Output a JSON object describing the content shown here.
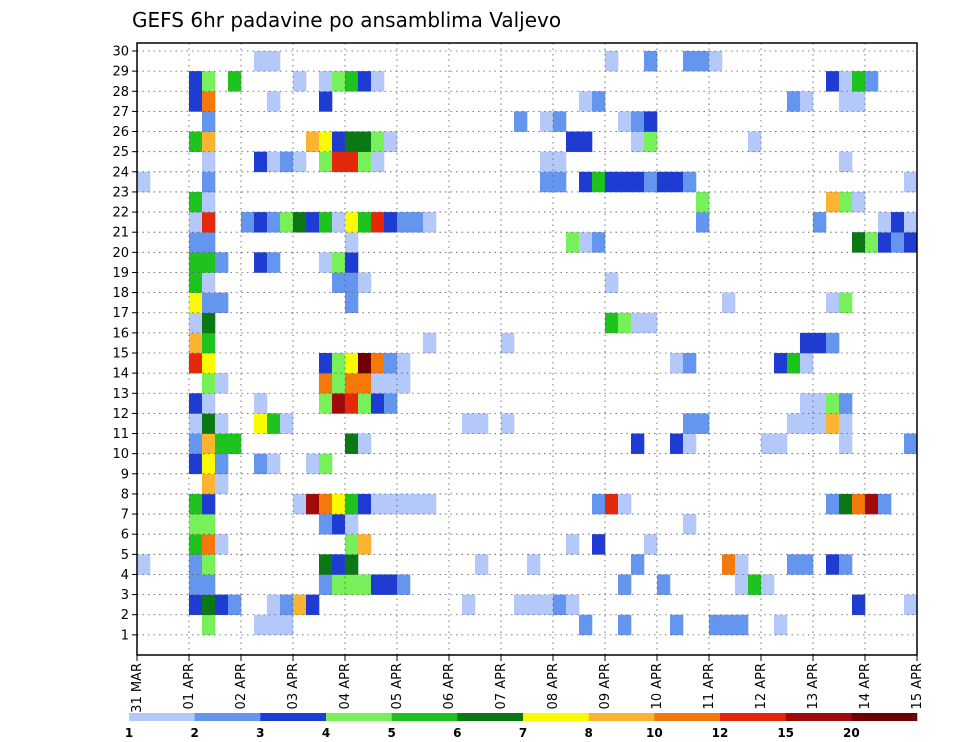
{
  "chart_data": {
    "type": "heatmap",
    "title": "GEFS 6hr padavine po ansamblima Valjevo",
    "x_tick_labels": [
      "31 MAR",
      "01 APR",
      "02 APR",
      "03 APR",
      "04 APR",
      "05 APR",
      "06 APR",
      "07 APR",
      "08 APR",
      "09 APR",
      "10 APR",
      "11 APR",
      "12 APR",
      "13 APR",
      "14 APR",
      "15 APR"
    ],
    "y_tick_labels": [
      "1",
      "2",
      "3",
      "4",
      "5",
      "6",
      "7",
      "8",
      "9",
      "10",
      "11",
      "12",
      "13",
      "14",
      "15",
      "16",
      "17",
      "18",
      "19",
      "20",
      "21",
      "22",
      "23",
      "24",
      "25",
      "26",
      "27",
      "28",
      "29",
      "30"
    ],
    "ylim": [
      0,
      30
    ],
    "x_steps": 60,
    "steps_per_day": 4,
    "grid": true,
    "colorbar": {
      "labels": [
        "1",
        "2",
        "3",
        "4",
        "5",
        "6",
        "7",
        "8",
        "10",
        "12",
        "15",
        "20"
      ],
      "colors": [
        "#b4c8fa",
        "#6496f0",
        "#1e3cd2",
        "#78f05a",
        "#1ec31e",
        "#0a7814",
        "#fafa00",
        "#fab432",
        "#f5780a",
        "#e6280a",
        "#a00a0a",
        "#6e0000"
      ]
    },
    "cells": [
      [
        1,
        5,
        3
      ],
      [
        1,
        9,
        0
      ],
      [
        1,
        10,
        0
      ],
      [
        1,
        11,
        0
      ],
      [
        1,
        34,
        1
      ],
      [
        1,
        37,
        1
      ],
      [
        1,
        41,
        1
      ],
      [
        1,
        44,
        1
      ],
      [
        1,
        45,
        1
      ],
      [
        1,
        46,
        1
      ],
      [
        1,
        49,
        0
      ],
      [
        2,
        4,
        2
      ],
      [
        2,
        5,
        5
      ],
      [
        2,
        6,
        2
      ],
      [
        2,
        7,
        1
      ],
      [
        2,
        10,
        0
      ],
      [
        2,
        11,
        1
      ],
      [
        2,
        12,
        7
      ],
      [
        2,
        13,
        2
      ],
      [
        2,
        25,
        0
      ],
      [
        2,
        29,
        0
      ],
      [
        2,
        30,
        0
      ],
      [
        2,
        31,
        0
      ],
      [
        2,
        32,
        1
      ],
      [
        2,
        33,
        0
      ],
      [
        2,
        55,
        2
      ],
      [
        2,
        59,
        0
      ],
      [
        3,
        4,
        1
      ],
      [
        3,
        5,
        1
      ],
      [
        3,
        14,
        1
      ],
      [
        3,
        15,
        3
      ],
      [
        3,
        16,
        3
      ],
      [
        3,
        17,
        3
      ],
      [
        3,
        18,
        2
      ],
      [
        3,
        19,
        2
      ],
      [
        3,
        20,
        1
      ],
      [
        3,
        37,
        1
      ],
      [
        3,
        40,
        1
      ],
      [
        3,
        46,
        0
      ],
      [
        3,
        47,
        4
      ],
      [
        3,
        48,
        0
      ],
      [
        4,
        0,
        0
      ],
      [
        4,
        4,
        1
      ],
      [
        4,
        5,
        3
      ],
      [
        4,
        14,
        5
      ],
      [
        4,
        15,
        2
      ],
      [
        4,
        16,
        5
      ],
      [
        4,
        26,
        0
      ],
      [
        4,
        30,
        0
      ],
      [
        4,
        38,
        1
      ],
      [
        4,
        45,
        8
      ],
      [
        4,
        46,
        0
      ],
      [
        4,
        50,
        1
      ],
      [
        4,
        51,
        1
      ],
      [
        4,
        53,
        2
      ],
      [
        4,
        54,
        1
      ],
      [
        5,
        4,
        4
      ],
      [
        5,
        5,
        8
      ],
      [
        5,
        6,
        0
      ],
      [
        5,
        16,
        3
      ],
      [
        5,
        17,
        7
      ],
      [
        5,
        33,
        0
      ],
      [
        5,
        35,
        2
      ],
      [
        5,
        39,
        0
      ],
      [
        6,
        4,
        3
      ],
      [
        6,
        5,
        3
      ],
      [
        6,
        14,
        1
      ],
      [
        6,
        15,
        2
      ],
      [
        6,
        16,
        0
      ],
      [
        6,
        42,
        0
      ],
      [
        7,
        4,
        4
      ],
      [
        7,
        5,
        2
      ],
      [
        7,
        12,
        0
      ],
      [
        7,
        13,
        10
      ],
      [
        7,
        14,
        8
      ],
      [
        7,
        15,
        6
      ],
      [
        7,
        16,
        4
      ],
      [
        7,
        17,
        2
      ],
      [
        7,
        18,
        0
      ],
      [
        7,
        19,
        0
      ],
      [
        7,
        20,
        0
      ],
      [
        7,
        21,
        0
      ],
      [
        7,
        22,
        0
      ],
      [
        7,
        35,
        1
      ],
      [
        7,
        36,
        9
      ],
      [
        7,
        37,
        0
      ],
      [
        7,
        53,
        1
      ],
      [
        7,
        54,
        5
      ],
      [
        7,
        55,
        8
      ],
      [
        7,
        56,
        10
      ],
      [
        7,
        57,
        1
      ],
      [
        8,
        5,
        7
      ],
      [
        8,
        6,
        0
      ],
      [
        9,
        4,
        2
      ],
      [
        9,
        5,
        6
      ],
      [
        9,
        6,
        1
      ],
      [
        9,
        9,
        1
      ],
      [
        9,
        10,
        0
      ],
      [
        9,
        13,
        0
      ],
      [
        9,
        14,
        3
      ],
      [
        10,
        4,
        1
      ],
      [
        10,
        5,
        7
      ],
      [
        10,
        6,
        4
      ],
      [
        10,
        7,
        4
      ],
      [
        10,
        16,
        5
      ],
      [
        10,
        17,
        0
      ],
      [
        10,
        38,
        2
      ],
      [
        10,
        41,
        2
      ],
      [
        10,
        42,
        0
      ],
      [
        10,
        48,
        0
      ],
      [
        10,
        49,
        0
      ],
      [
        10,
        54,
        0
      ],
      [
        10,
        59,
        1
      ],
      [
        11,
        4,
        0
      ],
      [
        11,
        5,
        5
      ],
      [
        11,
        6,
        0
      ],
      [
        11,
        9,
        6
      ],
      [
        11,
        10,
        4
      ],
      [
        11,
        11,
        0
      ],
      [
        11,
        25,
        0
      ],
      [
        11,
        26,
        0
      ],
      [
        11,
        28,
        0
      ],
      [
        11,
        42,
        1
      ],
      [
        11,
        43,
        1
      ],
      [
        11,
        50,
        0
      ],
      [
        11,
        51,
        0
      ],
      [
        11,
        52,
        0
      ],
      [
        11,
        53,
        7
      ],
      [
        11,
        54,
        0
      ],
      [
        12,
        4,
        2
      ],
      [
        12,
        5,
        0
      ],
      [
        12,
        9,
        0
      ],
      [
        12,
        14,
        3
      ],
      [
        12,
        15,
        10
      ],
      [
        12,
        16,
        9
      ],
      [
        12,
        17,
        3
      ],
      [
        12,
        18,
        2
      ],
      [
        12,
        19,
        1
      ],
      [
        12,
        51,
        0
      ],
      [
        12,
        52,
        0
      ],
      [
        12,
        53,
        3
      ],
      [
        12,
        54,
        1
      ],
      [
        13,
        5,
        3
      ],
      [
        13,
        6,
        0
      ],
      [
        13,
        14,
        8
      ],
      [
        13,
        15,
        3
      ],
      [
        13,
        16,
        8
      ],
      [
        13,
        17,
        8
      ],
      [
        13,
        18,
        0
      ],
      [
        13,
        19,
        0
      ],
      [
        13,
        20,
        0
      ],
      [
        14,
        4,
        9
      ],
      [
        14,
        5,
        6
      ],
      [
        14,
        14,
        2
      ],
      [
        14,
        15,
        3
      ],
      [
        14,
        16,
        6
      ],
      [
        14,
        17,
        11
      ],
      [
        14,
        18,
        8
      ],
      [
        14,
        19,
        1
      ],
      [
        14,
        20,
        0
      ],
      [
        14,
        41,
        0
      ],
      [
        14,
        42,
        1
      ],
      [
        14,
        49,
        2
      ],
      [
        14,
        50,
        4
      ],
      [
        14,
        51,
        0
      ],
      [
        15,
        4,
        7
      ],
      [
        15,
        5,
        4
      ],
      [
        15,
        22,
        0
      ],
      [
        15,
        28,
        0
      ],
      [
        15,
        51,
        2
      ],
      [
        15,
        52,
        2
      ],
      [
        15,
        53,
        1
      ],
      [
        16,
        4,
        0
      ],
      [
        16,
        5,
        5
      ],
      [
        16,
        36,
        4
      ],
      [
        16,
        37,
        3
      ],
      [
        16,
        38,
        0
      ],
      [
        16,
        39,
        0
      ],
      [
        17,
        4,
        6
      ],
      [
        17,
        5,
        1
      ],
      [
        17,
        6,
        1
      ],
      [
        17,
        16,
        1
      ],
      [
        17,
        45,
        0
      ],
      [
        17,
        53,
        0
      ],
      [
        17,
        54,
        3
      ],
      [
        18,
        4,
        4
      ],
      [
        18,
        5,
        0
      ],
      [
        18,
        15,
        1
      ],
      [
        18,
        16,
        1
      ],
      [
        18,
        17,
        0
      ],
      [
        18,
        36,
        0
      ],
      [
        19,
        4,
        4
      ],
      [
        19,
        5,
        4
      ],
      [
        19,
        6,
        1
      ],
      [
        19,
        9,
        2
      ],
      [
        19,
        10,
        1
      ],
      [
        19,
        14,
        0
      ],
      [
        19,
        15,
        3
      ],
      [
        19,
        16,
        2
      ],
      [
        20,
        4,
        1
      ],
      [
        20,
        5,
        1
      ],
      [
        20,
        16,
        0
      ],
      [
        20,
        33,
        3
      ],
      [
        20,
        34,
        0
      ],
      [
        20,
        35,
        1
      ],
      [
        20,
        55,
        5
      ],
      [
        20,
        56,
        3
      ],
      [
        20,
        57,
        2
      ],
      [
        20,
        58,
        1
      ],
      [
        20,
        59,
        2
      ],
      [
        21,
        4,
        0
      ],
      [
        21,
        5,
        9
      ],
      [
        21,
        8,
        1
      ],
      [
        21,
        9,
        2
      ],
      [
        21,
        10,
        1
      ],
      [
        21,
        11,
        3
      ],
      [
        21,
        12,
        5
      ],
      [
        21,
        13,
        2
      ],
      [
        21,
        14,
        4
      ],
      [
        21,
        15,
        0
      ],
      [
        21,
        16,
        6
      ],
      [
        21,
        17,
        4
      ],
      [
        21,
        18,
        9
      ],
      [
        21,
        19,
        2
      ],
      [
        21,
        20,
        1
      ],
      [
        21,
        21,
        1
      ],
      [
        21,
        22,
        0
      ],
      [
        21,
        43,
        1
      ],
      [
        21,
        52,
        1
      ],
      [
        21,
        57,
        0
      ],
      [
        21,
        58,
        2
      ],
      [
        21,
        59,
        0
      ],
      [
        22,
        4,
        4
      ],
      [
        22,
        5,
        0
      ],
      [
        22,
        43,
        3
      ],
      [
        22,
        53,
        7
      ],
      [
        22,
        54,
        3
      ],
      [
        22,
        55,
        0
      ],
      [
        23,
        0,
        0
      ],
      [
        23,
        5,
        1
      ],
      [
        23,
        31,
        1
      ],
      [
        23,
        32,
        1
      ],
      [
        23,
        34,
        2
      ],
      [
        23,
        35,
        4
      ],
      [
        23,
        36,
        2
      ],
      [
        23,
        37,
        2
      ],
      [
        23,
        38,
        2
      ],
      [
        23,
        39,
        1
      ],
      [
        23,
        40,
        2
      ],
      [
        23,
        41,
        2
      ],
      [
        23,
        42,
        1
      ],
      [
        23,
        59,
        0
      ],
      [
        24,
        5,
        0
      ],
      [
        24,
        9,
        2
      ],
      [
        24,
        10,
        0
      ],
      [
        24,
        11,
        1
      ],
      [
        24,
        12,
        0
      ],
      [
        24,
        14,
        3
      ],
      [
        24,
        15,
        9
      ],
      [
        24,
        16,
        9
      ],
      [
        24,
        17,
        3
      ],
      [
        24,
        18,
        0
      ],
      [
        24,
        31,
        0
      ],
      [
        24,
        32,
        0
      ],
      [
        24,
        54,
        0
      ],
      [
        25,
        4,
        4
      ],
      [
        25,
        5,
        7
      ],
      [
        25,
        13,
        7
      ],
      [
        25,
        14,
        6
      ],
      [
        25,
        15,
        2
      ],
      [
        25,
        16,
        5
      ],
      [
        25,
        17,
        5
      ],
      [
        25,
        18,
        3
      ],
      [
        25,
        19,
        0
      ],
      [
        25,
        33,
        2
      ],
      [
        25,
        34,
        2
      ],
      [
        25,
        38,
        0
      ],
      [
        25,
        39,
        3
      ],
      [
        25,
        47,
        0
      ],
      [
        26,
        5,
        1
      ],
      [
        26,
        29,
        1
      ],
      [
        26,
        31,
        0
      ],
      [
        26,
        32,
        1
      ],
      [
        26,
        37,
        0
      ],
      [
        26,
        38,
        1
      ],
      [
        26,
        39,
        2
      ],
      [
        27,
        4,
        2
      ],
      [
        27,
        5,
        8
      ],
      [
        27,
        10,
        0
      ],
      [
        27,
        14,
        2
      ],
      [
        27,
        34,
        0
      ],
      [
        27,
        35,
        1
      ],
      [
        27,
        50,
        1
      ],
      [
        27,
        51,
        0
      ],
      [
        27,
        54,
        0
      ],
      [
        27,
        55,
        0
      ],
      [
        28,
        4,
        2
      ],
      [
        28,
        5,
        3
      ],
      [
        28,
        7,
        4
      ],
      [
        28,
        12,
        0
      ],
      [
        28,
        14,
        0
      ],
      [
        28,
        15,
        3
      ],
      [
        28,
        16,
        4
      ],
      [
        28,
        17,
        2
      ],
      [
        28,
        18,
        0
      ],
      [
        28,
        53,
        2
      ],
      [
        28,
        54,
        0
      ],
      [
        28,
        55,
        4
      ],
      [
        28,
        56,
        1
      ],
      [
        29,
        9,
        0
      ],
      [
        29,
        10,
        0
      ],
      [
        29,
        36,
        0
      ],
      [
        29,
        39,
        1
      ],
      [
        29,
        42,
        1
      ],
      [
        29,
        43,
        1
      ],
      [
        29,
        44,
        0
      ]
    ]
  }
}
